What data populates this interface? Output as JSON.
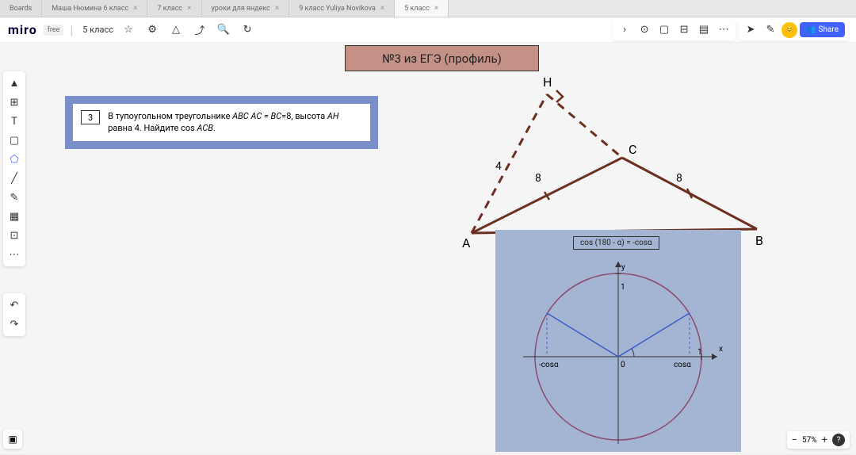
{
  "tabs": [
    {
      "label": "Boards",
      "active": false,
      "close": false
    },
    {
      "label": "Маша Нюмина 6 класс",
      "active": false,
      "close": true
    },
    {
      "label": "7 класс",
      "active": false,
      "close": true
    },
    {
      "label": "уроки для яндекс",
      "active": false,
      "close": true
    },
    {
      "label": "9 класс Yuliya Novikova",
      "active": false,
      "close": true
    },
    {
      "label": "5 класс",
      "active": true,
      "close": true
    }
  ],
  "logo": "miro",
  "plan": "free",
  "board_name": "5 класс",
  "share": "Share",
  "title": "№3 из ЕГЭ (профиль)",
  "problem": {
    "num": "3",
    "text_p1": "В тупоугольном треугольнике ",
    "abc": "ABC AC = BC",
    "eq": "=8, высота ",
    "ah": "AH",
    "text_p2": " равна 4. Найдите cos ",
    "acb": "ACB",
    "dot": "."
  },
  "triangle": {
    "labels": {
      "H": "H",
      "C": "C",
      "A": "A",
      "B": "B"
    },
    "sides": {
      "AH": "4",
      "AC": "8",
      "CB": "8"
    },
    "color": "#6b2e1f"
  },
  "circle": {
    "formula": "cos (180 - α) = -cosα",
    "y": "y",
    "x": "x",
    "one": "1",
    "zero": "0",
    "cos": "cosα",
    "ncos": "-cosα"
  },
  "zoom": "57%"
}
